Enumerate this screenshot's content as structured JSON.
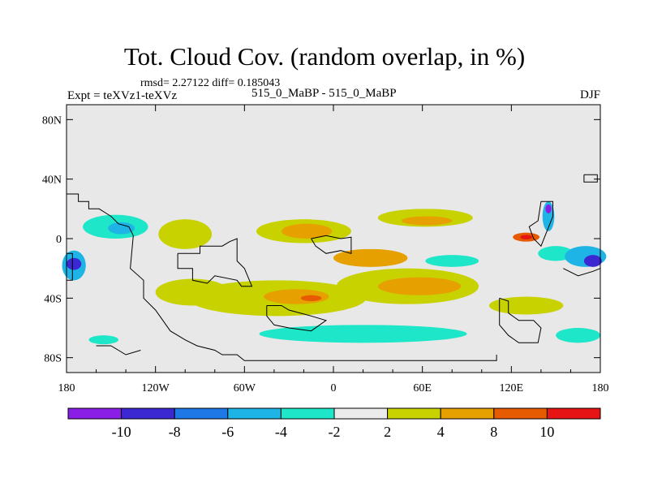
{
  "title": "Tot. Cloud Cov. (random overlap, in %)",
  "stats_label": "rmsd= 2.27122 diff= 0.185043",
  "experiment_label": "Expt = teXVz1-teXVz",
  "center_label": "515_0_MaBP - 515_0_MaBP",
  "season_label": "DJF",
  "chart_data": {
    "type": "heatmap",
    "title": "Tot. Cloud Cov. (random overlap, in %)",
    "x_ticks": [
      "180",
      "120W",
      "60W",
      "0",
      "60E",
      "120E",
      "180"
    ],
    "x_tick_values": [
      -180,
      -120,
      -60,
      0,
      60,
      120,
      180
    ],
    "y_ticks": [
      "80N",
      "40N",
      "0",
      "40S",
      "80S"
    ],
    "y_tick_values": [
      80,
      40,
      0,
      -40,
      -80
    ],
    "xlim": [
      -180,
      180
    ],
    "ylim": [
      -90,
      90
    ],
    "colorbar": {
      "labels": [
        "-10",
        "-8",
        "-6",
        "-4",
        "-2",
        "2",
        "4",
        "8",
        "10"
      ],
      "colors": [
        "#8a1ee6",
        "#3c28d2",
        "#1e78e6",
        "#1eb4e6",
        "#1ee6c8",
        "#ebebeb",
        "#c8d200",
        "#e6a000",
        "#e65a00",
        "#e61414"
      ]
    },
    "regions": [
      {
        "lon": -147,
        "lat": 8,
        "lon_radius": 22,
        "lat_radius": 8,
        "level": "-4",
        "color": "#1ee6c8"
      },
      {
        "lon": -143,
        "lat": 7,
        "lon_radius": 9,
        "lat_radius": 4,
        "level": "-6",
        "color": "#1eb4e6"
      },
      {
        "lon": -175,
        "lat": -18,
        "lon_radius": 8,
        "lat_radius": 10,
        "level": "-6",
        "color": "#1eb4e6"
      },
      {
        "lon": -175,
        "lat": -17,
        "lon_radius": 5,
        "lat_radius": 4,
        "level": "-8",
        "color": "#3c28d2"
      },
      {
        "lon": -100,
        "lat": 3,
        "lon_radius": 18,
        "lat_radius": 10,
        "level": "2",
        "color": "#c8d200"
      },
      {
        "lon": -20,
        "lat": 5,
        "lon_radius": 32,
        "lat_radius": 8,
        "level": "2",
        "color": "#c8d200"
      },
      {
        "lon": -18,
        "lat": 5,
        "lon_radius": 17,
        "lat_radius": 5,
        "level": "4",
        "color": "#e6a000"
      },
      {
        "lon": 25,
        "lat": -13,
        "lon_radius": 25,
        "lat_radius": 6,
        "level": "4",
        "color": "#e6a000"
      },
      {
        "lon": 50,
        "lat": -32,
        "lon_radius": 48,
        "lat_radius": 12,
        "level": "2",
        "color": "#c8d200"
      },
      {
        "lon": 58,
        "lat": -32,
        "lon_radius": 28,
        "lat_radius": 6,
        "level": "4",
        "color": "#e6a000"
      },
      {
        "lon": 62,
        "lat": 14,
        "lon_radius": 32,
        "lat_radius": 6,
        "level": "2",
        "color": "#c8d200"
      },
      {
        "lon": 63,
        "lat": 12,
        "lon_radius": 17,
        "lat_radius": 3,
        "level": "4",
        "color": "#e6a000"
      },
      {
        "lon": -38,
        "lat": -40,
        "lon_radius": 60,
        "lat_radius": 12,
        "level": "2",
        "color": "#c8d200"
      },
      {
        "lon": -25,
        "lat": -39,
        "lon_radius": 22,
        "lat_radius": 5,
        "level": "4",
        "color": "#e6a000"
      },
      {
        "lon": -15,
        "lat": -40,
        "lon_radius": 7,
        "lat_radius": 2,
        "level": "8",
        "color": "#e65a00"
      },
      {
        "lon": -95,
        "lat": -36,
        "lon_radius": 25,
        "lat_radius": 9,
        "level": "2",
        "color": "#c8d200"
      },
      {
        "lon": 130,
        "lat": 1,
        "lon_radius": 9,
        "lat_radius": 3,
        "level": "8",
        "color": "#e65a00"
      },
      {
        "lon": 130,
        "lat": 1,
        "lon_radius": 4,
        "lat_radius": 1.5,
        "level": "10",
        "color": "#e61414"
      },
      {
        "lon": 145,
        "lat": 15,
        "lon_radius": 4,
        "lat_radius": 10,
        "level": "-6",
        "color": "#1eb4e6"
      },
      {
        "lon": 145,
        "lat": 20,
        "lon_radius": 2,
        "lat_radius": 3,
        "level": "-10",
        "color": "#8a1ee6"
      },
      {
        "lon": 150,
        "lat": -10,
        "lon_radius": 12,
        "lat_radius": 5,
        "level": "-4",
        "color": "#1ee6c8"
      },
      {
        "lon": 170,
        "lat": -12,
        "lon_radius": 14,
        "lat_radius": 7,
        "level": "-6",
        "color": "#1eb4e6"
      },
      {
        "lon": 175,
        "lat": -15,
        "lon_radius": 6,
        "lat_radius": 4,
        "level": "-8",
        "color": "#3c28d2"
      },
      {
        "lon": 80,
        "lat": -15,
        "lon_radius": 18,
        "lat_radius": 4,
        "level": "-4",
        "color": "#1ee6c8"
      },
      {
        "lon": 20,
        "lat": -64,
        "lon_radius": 70,
        "lat_radius": 6,
        "level": "-4",
        "color": "#1ee6c8"
      },
      {
        "lon": -155,
        "lat": -68,
        "lon_radius": 10,
        "lat_radius": 3,
        "level": "-4",
        "color": "#1ee6c8"
      },
      {
        "lon": 165,
        "lat": -65,
        "lon_radius": 15,
        "lat_radius": 5,
        "level": "-4",
        "color": "#1ee6c8"
      },
      {
        "lon": 130,
        "lat": -45,
        "lon_radius": 25,
        "lat_radius": 6,
        "level": "2",
        "color": "#c8d200"
      }
    ]
  }
}
